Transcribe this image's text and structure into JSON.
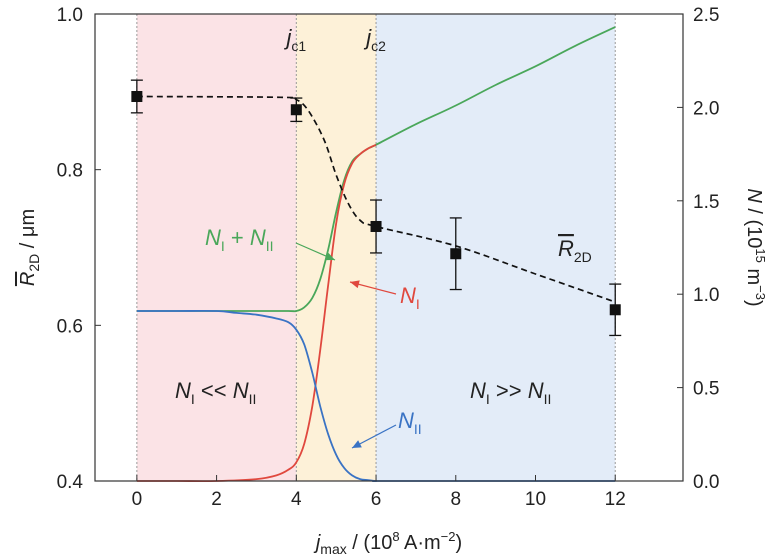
{
  "chart_data": {
    "type": "line",
    "x_axis": {
      "label_var": "j",
      "label_sub": "max",
      "label_rest": " / (10",
      "label_exp": "8",
      "label_units": " A·m",
      "label_unit_exp": "−2",
      "label_close": ")",
      "ticks": [
        0,
        2,
        4,
        6,
        8,
        10,
        12
      ],
      "range": [
        -1.05,
        13.7
      ]
    },
    "y_left": {
      "label_var": "R",
      "label_sub": "2D",
      "label_rest": " / μm",
      "ticks": [
        "0.4",
        "0.6",
        "0.8",
        "1.0"
      ],
      "range": [
        0.4,
        1.0
      ]
    },
    "y_right": {
      "label_var": "N",
      "label_rest": " / (10",
      "label_exp": "15",
      "label_units": " m",
      "label_unit_exp": "−3",
      "label_close": ")",
      "ticks": [
        "0.0",
        "0.5",
        "1.0",
        "1.5",
        "2.0",
        "2.5"
      ],
      "range": [
        0,
        2.5
      ]
    },
    "regions": [
      {
        "x0": 0,
        "x1": 4,
        "color": "#fbe3e6"
      },
      {
        "x0": 4,
        "x1": 6,
        "color": "#fdf1d8"
      },
      {
        "x0": 6,
        "x1": 12,
        "color": "#e3ecf8"
      }
    ],
    "vlines": [
      0,
      4,
      6,
      12
    ],
    "critical_labels": [
      {
        "x": 4,
        "var": "j",
        "sub": "c1"
      },
      {
        "x": 6,
        "var": "j",
        "sub": "c2"
      }
    ],
    "r2d_points": {
      "name": "R2D",
      "x": [
        0,
        4,
        6,
        8,
        12
      ],
      "y": [
        0.894,
        0.877,
        0.727,
        0.692,
        0.62
      ],
      "err": [
        0.021,
        0.015,
        0.034,
        0.046,
        0.033
      ]
    },
    "r2d_trend": {
      "x": [
        0,
        3.6,
        4.0,
        4.3,
        4.7,
        5.0,
        5.3,
        5.6,
        6.0,
        8.0,
        10.0,
        12.0
      ],
      "y": [
        0.894,
        0.893,
        0.89,
        0.876,
        0.838,
        0.793,
        0.757,
        0.735,
        0.727,
        0.702,
        0.666,
        0.63
      ]
    },
    "series": [
      {
        "name": "NI + NII",
        "color": "#4aa75a",
        "x": [
          0,
          1,
          2,
          3,
          3.8,
          4.0,
          4.2,
          4.4,
          4.6,
          4.8,
          5.0,
          5.2,
          5.4,
          5.6,
          5.8,
          6.0,
          7,
          8,
          9,
          10,
          11,
          12
        ],
        "y": [
          0.91,
          0.91,
          0.91,
          0.91,
          0.91,
          0.91,
          0.93,
          0.98,
          1.08,
          1.24,
          1.44,
          1.61,
          1.71,
          1.75,
          1.78,
          1.8,
          1.91,
          2.01,
          2.12,
          2.22,
          2.33,
          2.43
        ]
      },
      {
        "name": "NI",
        "color": "#e0483e",
        "x": [
          0,
          1,
          2,
          3,
          3.5,
          3.8,
          4.0,
          4.2,
          4.4,
          4.6,
          4.8,
          5.0,
          5.2,
          5.4,
          5.6,
          5.8,
          6.0
        ],
        "y": [
          0,
          0,
          0,
          0.01,
          0.03,
          0.06,
          0.1,
          0.2,
          0.4,
          0.7,
          1.05,
          1.38,
          1.59,
          1.7,
          1.75,
          1.78,
          1.8
        ]
      },
      {
        "name": "NII",
        "color": "#3a73c4",
        "x": [
          0,
          1,
          2,
          2.5,
          3.0,
          3.5,
          3.8,
          4.0,
          4.2,
          4.4,
          4.6,
          4.8,
          5.0,
          5.2,
          5.4,
          5.6,
          5.8,
          6.0,
          6.5,
          12
        ],
        "y": [
          0.91,
          0.91,
          0.91,
          0.9,
          0.89,
          0.87,
          0.85,
          0.81,
          0.73,
          0.58,
          0.4,
          0.25,
          0.14,
          0.07,
          0.03,
          0.01,
          0.005,
          0.0,
          0.0,
          0.0
        ]
      }
    ],
    "annotations": {
      "nsum": {
        "a": "N",
        "as": "I",
        "op": " + ",
        "b": "N",
        "bs": "II"
      },
      "ni": {
        "a": "N",
        "as": "I"
      },
      "nii": {
        "a": "N",
        "as": "II"
      },
      "r2d": {
        "a": "R",
        "as": "2D"
      },
      "left_region": {
        "a": "N",
        "as": "I",
        "op": " << ",
        "b": "N",
        "bs": "II"
      },
      "right_region": {
        "a": "N",
        "as": "I",
        "op": " >> ",
        "b": "N",
        "bs": "II"
      }
    }
  }
}
